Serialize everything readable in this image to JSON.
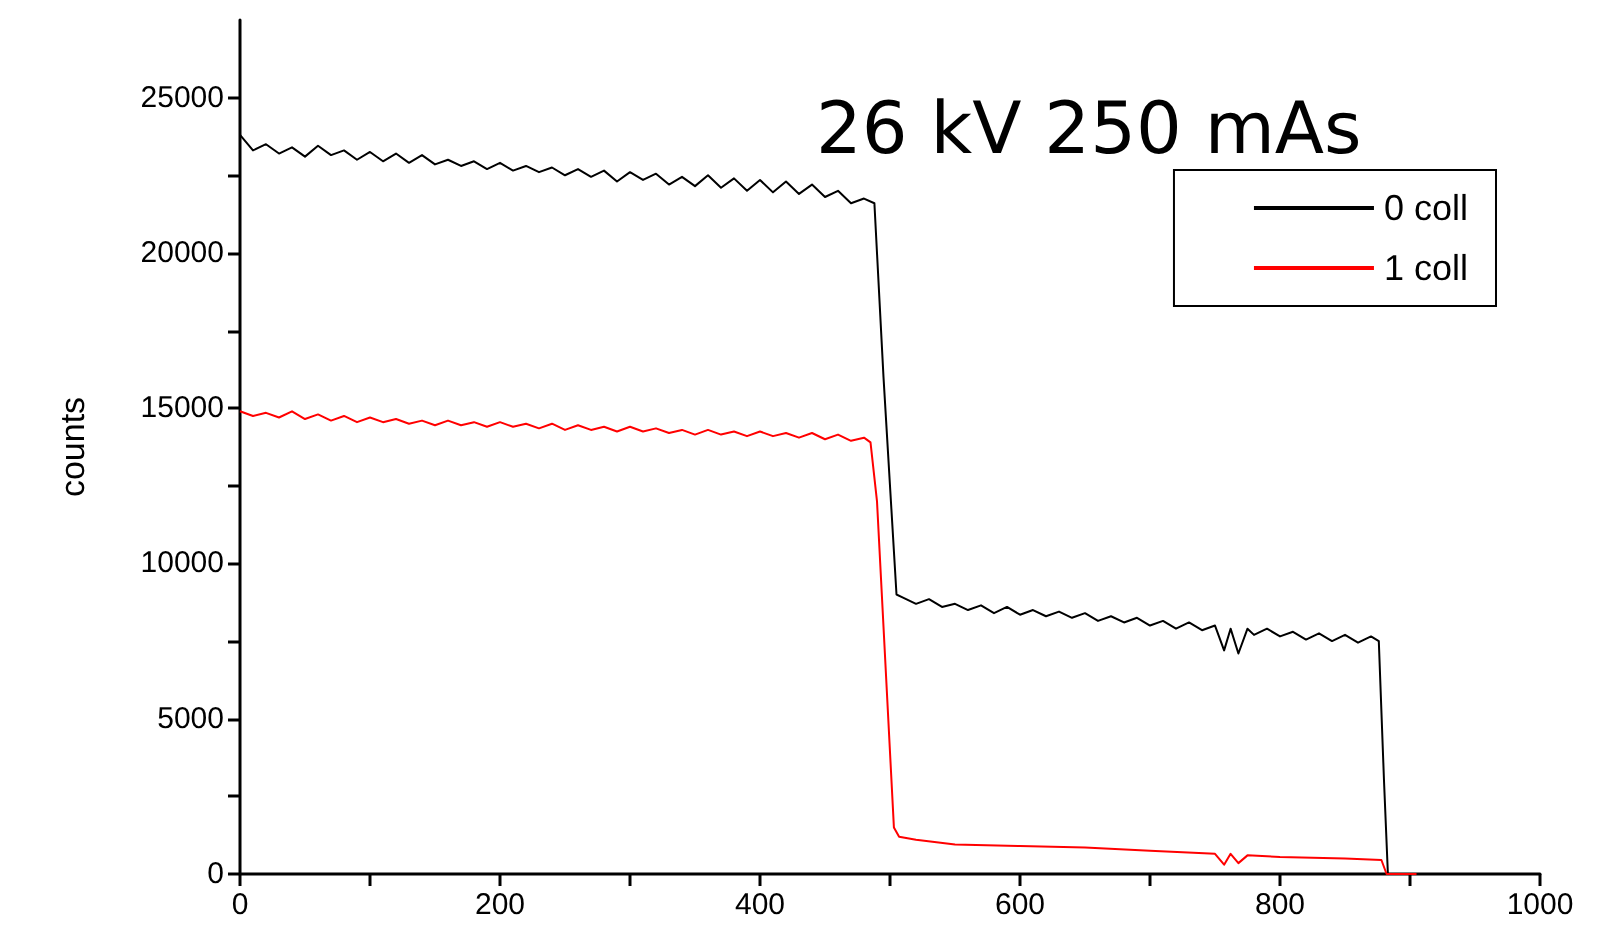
{
  "chart_data": {
    "type": "line",
    "title": "26 kV 250 mAs",
    "ylabel": "counts",
    "xlim": [
      0,
      1000
    ],
    "ylim": [
      0,
      27500
    ],
    "xticks": [
      0,
      {
        "value": 100,
        "label": null
      },
      200,
      {
        "value": 300,
        "label": null
      },
      400,
      {
        "value": 500,
        "label": null
      },
      600,
      {
        "value": 700,
        "label": null
      },
      800,
      {
        "value": 900,
        "label": null
      },
      1000
    ],
    "yticks": [
      0,
      {
        "value": 2500,
        "label": null
      },
      5000,
      {
        "value": 7500,
        "label": null
      },
      10000,
      {
        "value": 12500,
        "label": null
      },
      15000,
      {
        "value": 17500,
        "label": null
      },
      20000,
      {
        "value": 22500,
        "label": null
      },
      25000
    ],
    "grid": false,
    "legend": "top right",
    "marker": "none",
    "line_style": "solid",
    "series": [
      {
        "name": "0 coll",
        "color": "#000000",
        "x": [
          0,
          10,
          20,
          30,
          40,
          50,
          60,
          70,
          80,
          90,
          100,
          110,
          120,
          130,
          140,
          150,
          160,
          170,
          180,
          190,
          200,
          210,
          220,
          230,
          240,
          250,
          260,
          270,
          280,
          290,
          300,
          310,
          320,
          330,
          340,
          350,
          360,
          370,
          380,
          390,
          400,
          410,
          420,
          430,
          440,
          450,
          460,
          470,
          480,
          488,
          495,
          505,
          510,
          520,
          530,
          540,
          550,
          560,
          570,
          580,
          590,
          600,
          610,
          620,
          630,
          640,
          650,
          660,
          670,
          680,
          690,
          700,
          710,
          720,
          730,
          740,
          750,
          757,
          762,
          768,
          775,
          780,
          790,
          800,
          810,
          820,
          830,
          840,
          850,
          860,
          870,
          876,
          880,
          883,
          895
        ],
        "values": [
          23800,
          23300,
          23500,
          23200,
          23400,
          23100,
          23450,
          23150,
          23300,
          23000,
          23250,
          22950,
          23200,
          22900,
          23150,
          22850,
          23000,
          22800,
          22950,
          22700,
          22900,
          22650,
          22800,
          22600,
          22750,
          22500,
          22700,
          22450,
          22650,
          22300,
          22600,
          22350,
          22550,
          22200,
          22450,
          22150,
          22500,
          22100,
          22400,
          22000,
          22350,
          21950,
          22300,
          21900,
          22200,
          21800,
          22000,
          21600,
          21750,
          21600,
          16000,
          9000,
          8900,
          8700,
          8850,
          8600,
          8700,
          8500,
          8650,
          8400,
          8600,
          8350,
          8500,
          8300,
          8450,
          8250,
          8400,
          8150,
          8300,
          8100,
          8250,
          8000,
          8150,
          7900,
          8100,
          7850,
          8000,
          7200,
          7900,
          7100,
          7900,
          7700,
          7900,
          7650,
          7800,
          7550,
          7750,
          7500,
          7700,
          7450,
          7650,
          7500,
          3000,
          0,
          0
        ]
      },
      {
        "name": "1 coll",
        "color": "#ff0000",
        "x": [
          0,
          10,
          20,
          30,
          40,
          50,
          60,
          70,
          80,
          90,
          100,
          110,
          120,
          130,
          140,
          150,
          160,
          170,
          180,
          190,
          200,
          210,
          220,
          230,
          240,
          250,
          260,
          270,
          280,
          290,
          300,
          310,
          320,
          330,
          340,
          350,
          360,
          370,
          380,
          390,
          400,
          410,
          420,
          430,
          440,
          450,
          460,
          470,
          480,
          485,
          490,
          503,
          507,
          520,
          550,
          600,
          650,
          700,
          750,
          757,
          762,
          768,
          775,
          800,
          850,
          878,
          882,
          905
        ],
        "values": [
          14900,
          14750,
          14850,
          14700,
          14900,
          14650,
          14800,
          14600,
          14750,
          14550,
          14700,
          14550,
          14650,
          14500,
          14600,
          14450,
          14600,
          14450,
          14550,
          14400,
          14550,
          14400,
          14500,
          14350,
          14500,
          14300,
          14450,
          14300,
          14400,
          14250,
          14400,
          14250,
          14350,
          14200,
          14300,
          14150,
          14300,
          14150,
          14250,
          14100,
          14250,
          14100,
          14200,
          14050,
          14200,
          14000,
          14150,
          13950,
          14050,
          13900,
          12000,
          1500,
          1200,
          1100,
          950,
          900,
          850,
          750,
          650,
          300,
          650,
          350,
          600,
          550,
          500,
          450,
          0,
          0
        ]
      }
    ]
  }
}
